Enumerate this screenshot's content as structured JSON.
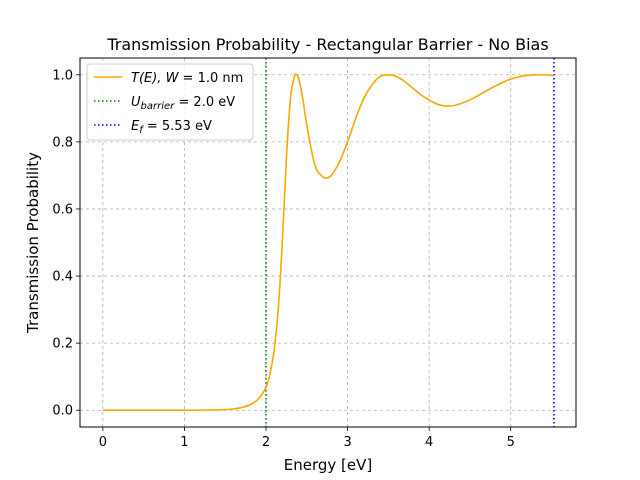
{
  "chart_data": {
    "type": "line",
    "title": "Transmission Probability - Rectangular Barrier - No Bias",
    "xlabel": "Energy [eV]",
    "ylabel": "Transmission Probability",
    "xlim": [
      -0.28,
      5.8
    ],
    "ylim": [
      -0.05,
      1.05
    ],
    "x_ticks": [
      0,
      1,
      2,
      3,
      4,
      5
    ],
    "y_ticks": [
      0.0,
      0.2,
      0.4,
      0.6,
      0.8,
      1.0
    ],
    "y_tick_labels": [
      "0.0",
      "0.2",
      "0.4",
      "0.6",
      "0.8",
      "1.0"
    ],
    "grid": true,
    "legend_position": "top-left",
    "series": [
      {
        "name": "T(E), W = 1.0 nm",
        "color": "#ffa500",
        "x": [
          0.0,
          0.5,
          1.0,
          1.2,
          1.4,
          1.5,
          1.6,
          1.7,
          1.8,
          1.9,
          2.0,
          2.05,
          2.1,
          2.15,
          2.2,
          2.25,
          2.3,
          2.35,
          2.37,
          2.4,
          2.45,
          2.5,
          2.6,
          2.7,
          2.75,
          2.8,
          2.9,
          3.0,
          3.1,
          3.2,
          3.3,
          3.4,
          3.5,
          3.6,
          3.7,
          3.8,
          3.9,
          4.0,
          4.1,
          4.2,
          4.3,
          4.4,
          4.5,
          4.6,
          4.7,
          4.8,
          4.9,
          5.0,
          5.1,
          5.2,
          5.3,
          5.4,
          5.53
        ],
        "y": [
          0.0,
          0.0,
          0.0,
          0.0005,
          0.001,
          0.002,
          0.004,
          0.008,
          0.016,
          0.032,
          0.068,
          0.11,
          0.18,
          0.3,
          0.5,
          0.75,
          0.93,
          0.995,
          1.0,
          0.99,
          0.93,
          0.85,
          0.73,
          0.695,
          0.693,
          0.7,
          0.74,
          0.8,
          0.87,
          0.93,
          0.97,
          0.995,
          1.0,
          0.995,
          0.98,
          0.96,
          0.94,
          0.925,
          0.912,
          0.907,
          0.908,
          0.915,
          0.925,
          0.938,
          0.952,
          0.965,
          0.977,
          0.987,
          0.994,
          0.998,
          1.0,
          1.0,
          0.998
        ]
      }
    ],
    "vlines": [
      {
        "name": "U_barrier = 2.0 eV",
        "x": 2.0,
        "color": "#008000",
        "style": "dotted"
      },
      {
        "name": "E_f = 5.53 eV",
        "x": 5.53,
        "color": "#0000ff",
        "style": "dotted"
      }
    ],
    "legend": {
      "curve": {
        "math": "T(E), W = ",
        "value": "1.0 nm"
      },
      "barrier": {
        "symbol": "U",
        "sub": "barrier",
        "value": " = 2.0 eV"
      },
      "fermi": {
        "symbol": "E",
        "sub": "f",
        "value": " = 5.53 eV"
      }
    }
  }
}
